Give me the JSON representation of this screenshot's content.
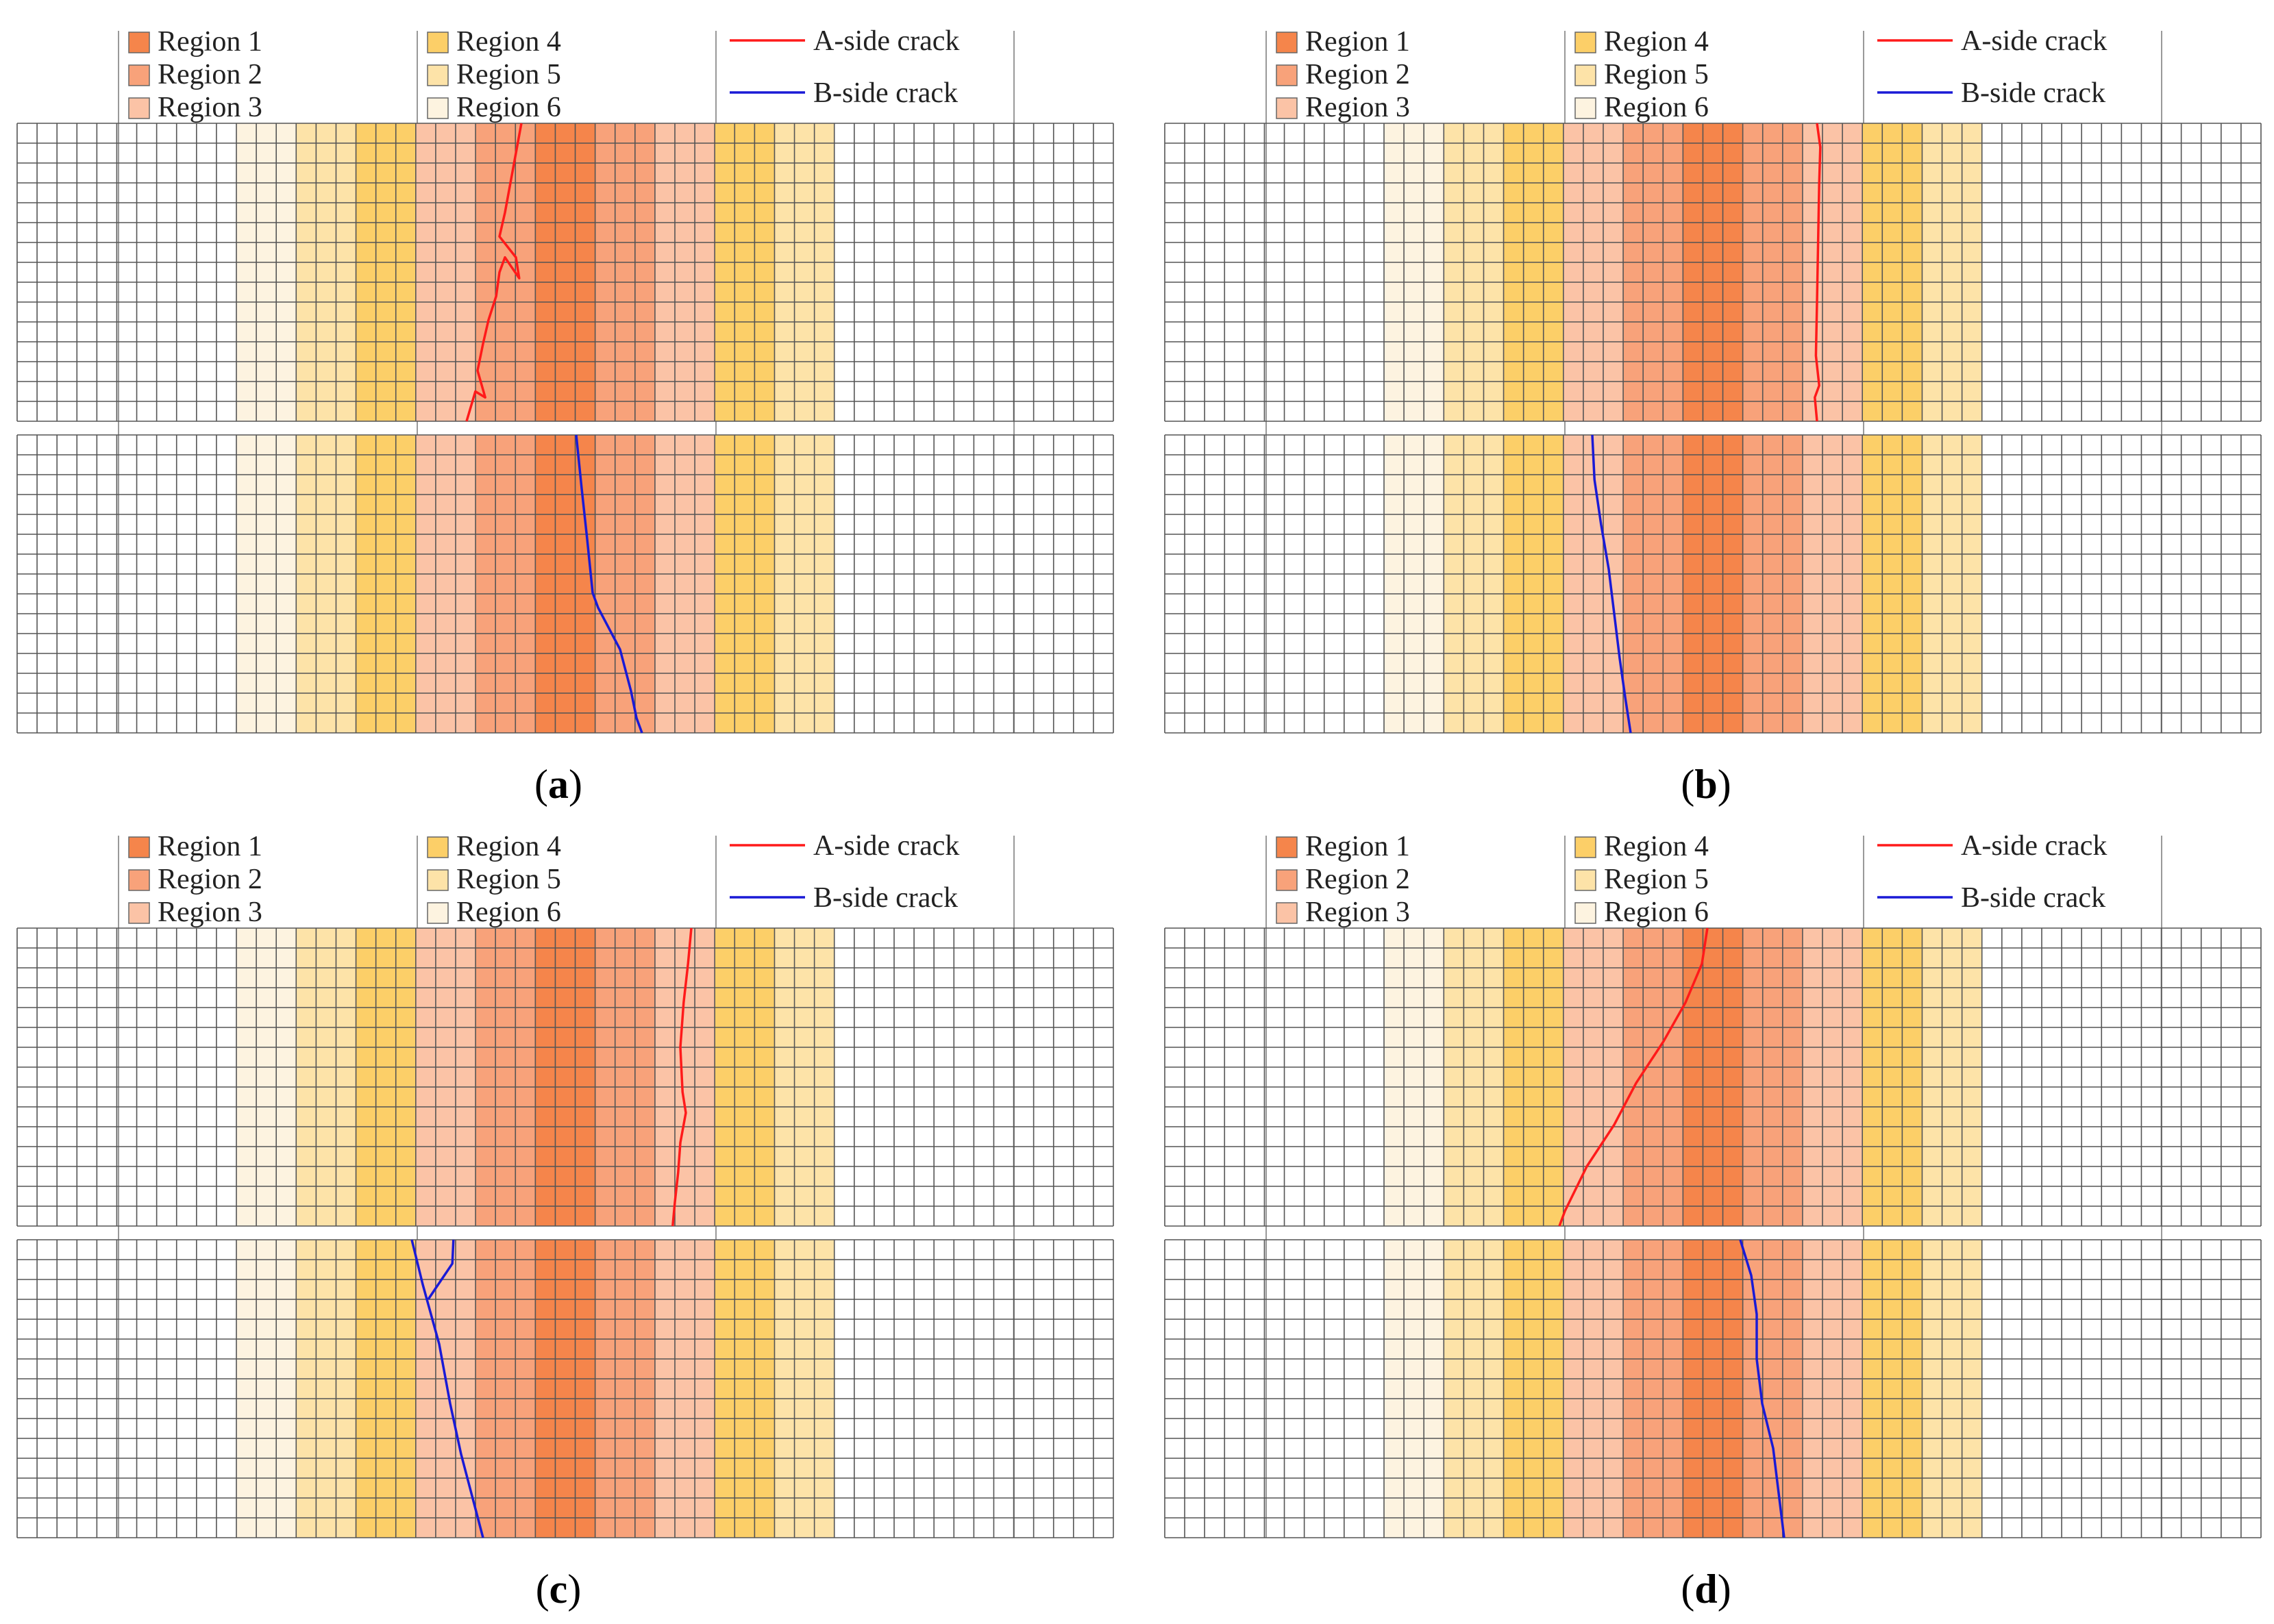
{
  "figure": {
    "colors": {
      "region1": "#f5854b",
      "region2": "#f8a27a",
      "region3": "#fbc3a6",
      "region4": "#fccf68",
      "region5": "#fde3a8",
      "region6": "#fdf3e0",
      "a_crack": "#ff1a1a",
      "b_crack": "#1a1ad6",
      "grid": "#555555",
      "connector": "#999999"
    },
    "legend": {
      "regions": [
        "Region 1",
        "Region 2",
        "Region 3",
        "Region 4",
        "Region 5",
        "Region 6"
      ],
      "cracks": [
        "A-side crack",
        "B-side crack"
      ]
    },
    "panels": [
      {
        "id": "a",
        "letter": "a",
        "open": "(",
        "close": ")"
      },
      {
        "id": "b",
        "letter": "b",
        "open": "(",
        "close": ")"
      },
      {
        "id": "c",
        "letter": "c",
        "open": "(",
        "close": ")"
      },
      {
        "id": "d",
        "letter": "d",
        "open": "(",
        "close": ")"
      }
    ]
  }
}
